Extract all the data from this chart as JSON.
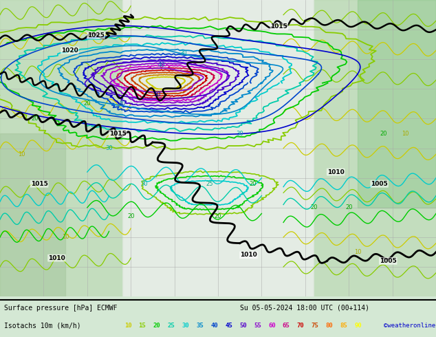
{
  "title_line1": "Surface pressure [hPa] ECMWF",
  "title_line2": "Su 05-05-2024 18:00 UTC (00+114)",
  "legend_label": "Isotachs 10m (km/h)",
  "copyright": "©weatheronline.co.uk",
  "isotach_values": [
    10,
    15,
    20,
    25,
    30,
    35,
    40,
    45,
    50,
    55,
    60,
    65,
    70,
    75,
    80,
    85,
    90
  ],
  "isotach_legend_colors": [
    "#cccc00",
    "#88cc00",
    "#00cc00",
    "#00ccaa",
    "#00cccc",
    "#0088cc",
    "#0044cc",
    "#0000cc",
    "#5500cc",
    "#8800cc",
    "#cc00cc",
    "#cc0088",
    "#cc0000",
    "#cc4400",
    "#ff6600",
    "#ffaa00",
    "#ffff00"
  ],
  "fig_width": 6.34,
  "fig_height": 4.9,
  "dpi": 100
}
